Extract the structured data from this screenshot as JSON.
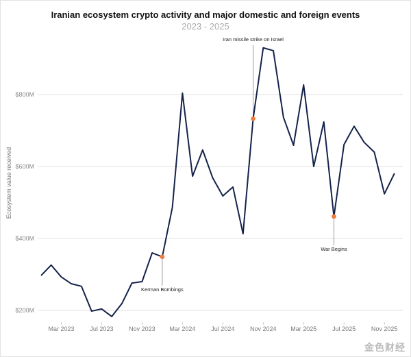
{
  "chart_data": {
    "type": "line",
    "title": "Iranian ecosystem crypto activity and major domestic and foreign events",
    "subtitle": "2023 - 2025",
    "xlabel": "",
    "ylabel": "Ecosystem value received",
    "ylim": [
      130,
      980
    ],
    "grid": true,
    "y_ticks": [
      {
        "value": 200,
        "label": "$200M"
      },
      {
        "value": 400,
        "label": "$400M"
      },
      {
        "value": 600,
        "label": "$600M"
      },
      {
        "value": 800,
        "label": "$800M"
      }
    ],
    "x_ticks": [
      {
        "index": 2,
        "label": "Mar 2023"
      },
      {
        "index": 6,
        "label": "Jul 2023"
      },
      {
        "index": 10,
        "label": "Nov 2023"
      },
      {
        "index": 14,
        "label": "Mar 2024"
      },
      {
        "index": 18,
        "label": "Jul 2024"
      },
      {
        "index": 22,
        "label": "Nov 2024"
      },
      {
        "index": 26,
        "label": "Mar 2025"
      },
      {
        "index": 30,
        "label": "Jul 2025"
      },
      {
        "index": 34,
        "label": "Nov 2025"
      }
    ],
    "x": [
      "Jan 2023",
      "Feb 2023",
      "Mar 2023",
      "Apr 2023",
      "May 2023",
      "Jun 2023",
      "Jul 2023",
      "Aug 2023",
      "Sep 2023",
      "Oct 2023",
      "Nov 2023",
      "Dec 2023",
      "Jan 2024",
      "Feb 2024",
      "Mar 2024",
      "Apr 2024",
      "May 2024",
      "Jun 2024",
      "Jul 2024",
      "Aug 2024",
      "Sep 2024",
      "Oct 2024",
      "Nov 2024",
      "Dec 2024",
      "Jan 2025",
      "Feb 2025",
      "Mar 2025",
      "Apr 2025",
      "May 2025",
      "Jun 2025",
      "Jul 2025",
      "Aug 2025",
      "Sep 2025",
      "Oct 2025",
      "Nov 2025",
      "Dec 2025"
    ],
    "series": [
      {
        "values": [
          297,
          326,
          293,
          274,
          267,
          198,
          204,
          183,
          219,
          276,
          280,
          360,
          349,
          486,
          804,
          573,
          646,
          568,
          518,
          543,
          413,
          733,
          930,
          922,
          737,
          659,
          827,
          600,
          724,
          461,
          661,
          712,
          667,
          640,
          524,
          581
        ],
        "color": "#14224a"
      }
    ],
    "annotations": [
      {
        "index": 12,
        "label": "Kerman Bombings",
        "position": "below"
      },
      {
        "index": 21,
        "label": "Iran missile strike on Israel",
        "position": "above"
      },
      {
        "index": 29,
        "label": "War Begins",
        "position": "below"
      }
    ],
    "annotation_color": "#f07b3a"
  },
  "watermark": "金色财经"
}
